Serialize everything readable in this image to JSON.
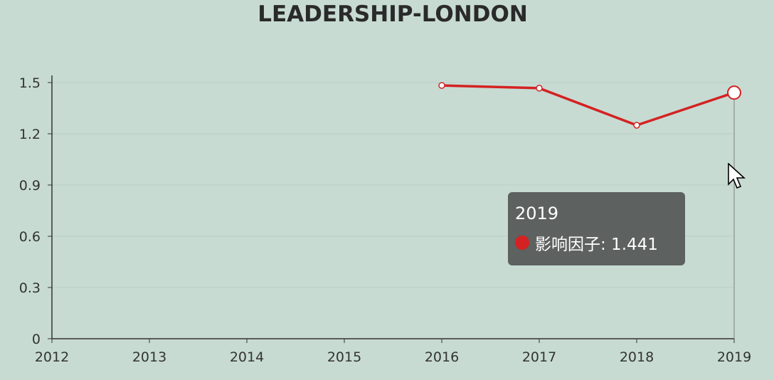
{
  "chart_data": {
    "type": "line",
    "title": "LEADERSHIP-LONDON",
    "x": [
      "2012",
      "2013",
      "2014",
      "2015",
      "2016",
      "2017",
      "2018",
      "2019"
    ],
    "series": [
      {
        "name": "影响因子",
        "values": [
          null,
          null,
          null,
          null,
          1.483,
          1.467,
          1.25,
          1.441
        ],
        "color": "#d42222"
      }
    ],
    "yticks": [
      "0",
      "0.3",
      "0.6",
      "0.9",
      "1.2",
      "1.5"
    ],
    "ylim": [
      0,
      1.5
    ],
    "grid": true,
    "legend": "none"
  },
  "tooltip": {
    "title": "2019",
    "series_name": "影响因子",
    "value": "1.441",
    "label": "影响因子: 1.441"
  },
  "colors": {
    "background": "#c7dbd3",
    "line": "#d42222",
    "tooltip_bg": "#5d6160"
  }
}
